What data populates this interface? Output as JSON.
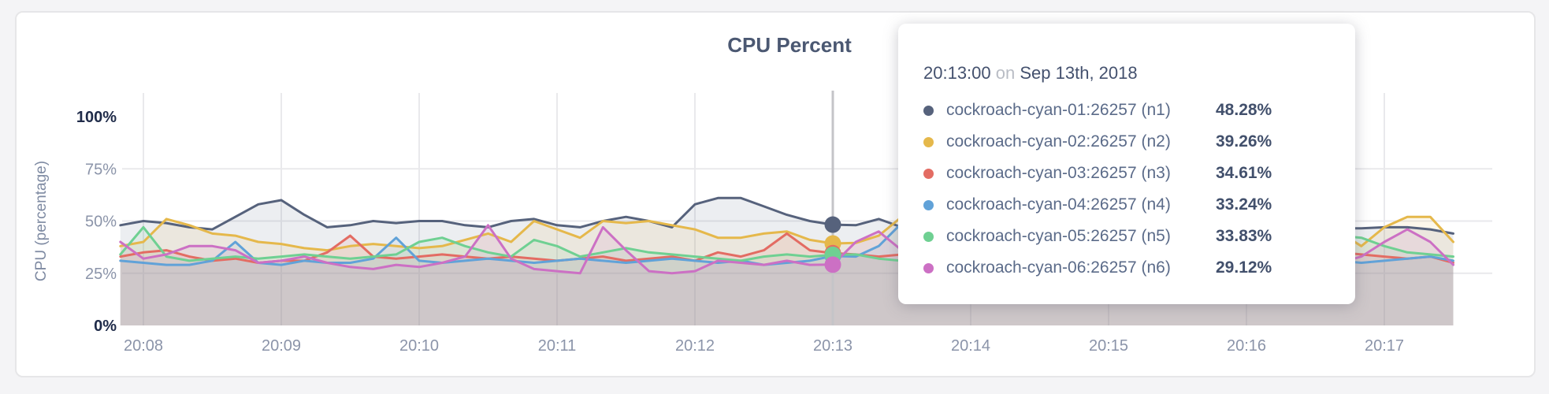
{
  "title": "CPU Percent",
  "chart_data": {
    "type": "line",
    "title": "CPU Percent",
    "ylabel": "CPU (percentage)",
    "ylim": [
      0,
      100
    ],
    "y_ticks": [
      {
        "label": "0%",
        "pct": 0,
        "emph": true
      },
      {
        "label": "25%",
        "pct": 25,
        "emph": false
      },
      {
        "label": "50%",
        "pct": 50,
        "emph": false
      },
      {
        "label": "75%",
        "pct": 75,
        "emph": false
      },
      {
        "label": "100%",
        "pct": 100,
        "emph": true
      }
    ],
    "x_ticks": [
      "20:08",
      "20:09",
      "20:10",
      "20:11",
      "20:12",
      "20:13",
      "20:14",
      "20:15",
      "20:16",
      "20:17"
    ],
    "x_range": [
      "20:07:50",
      "20:17:30"
    ],
    "sample_interval_sec": 10,
    "grid": true,
    "hover_index": 31,
    "hover_time": "20:13:00",
    "series": [
      {
        "name": "cockroach-cyan-01:26257 (n1)",
        "color": "#56627c",
        "values": [
          48,
          50,
          49,
          47,
          46,
          52,
          58,
          60,
          53,
          47,
          48,
          50,
          49,
          50,
          50,
          48,
          47,
          50,
          51,
          48,
          47,
          50,
          52,
          50,
          47,
          58,
          61,
          61,
          57,
          53,
          50,
          48.28,
          48,
          51,
          47,
          43,
          45,
          47,
          46,
          48,
          47,
          46,
          45,
          47,
          48,
          46,
          47,
          45,
          46,
          47,
          46,
          45,
          46,
          46.5,
          46.5,
          47,
          47,
          46,
          44
        ]
      },
      {
        "name": "cockroach-cyan-02:26257 (n2)",
        "color": "#e5b84b",
        "values": [
          38,
          40,
          51,
          48,
          44,
          43,
          40,
          39,
          37,
          36,
          38,
          39,
          38,
          37,
          38,
          41,
          44,
          40,
          50,
          46,
          42,
          50,
          49,
          50,
          48,
          46,
          42,
          42,
          44,
          45,
          41,
          39.26,
          39.5,
          43,
          52,
          46,
          42,
          44,
          40,
          42,
          45,
          43,
          40,
          44,
          46,
          43,
          45,
          42,
          44,
          40,
          43,
          46,
          44,
          45,
          38,
          47,
          52,
          52,
          40
        ]
      },
      {
        "name": "cockroach-cyan-03:26257 (n3)",
        "color": "#e36c63",
        "values": [
          33,
          35,
          36,
          33,
          31,
          32,
          30,
          31,
          31,
          35,
          43,
          33,
          32,
          33,
          34,
          33,
          32,
          33,
          32,
          31,
          32,
          33,
          31,
          32,
          33,
          31,
          35,
          33,
          36,
          44,
          36,
          34.61,
          34,
          33,
          34,
          32,
          33,
          34,
          33,
          32,
          34,
          33,
          35,
          34,
          33,
          34,
          33,
          32,
          34,
          33,
          34,
          33,
          34,
          35,
          34,
          33,
          32,
          33,
          30
        ]
      },
      {
        "name": "cockroach-cyan-04:26257 (n4)",
        "color": "#61a2d8",
        "values": [
          31,
          30,
          29,
          29,
          31,
          40,
          30,
          29,
          31,
          30,
          30,
          32,
          42,
          31,
          30,
          31,
          32,
          31,
          30,
          31,
          32,
          31,
          30,
          31,
          32,
          31,
          30,
          31,
          29,
          30,
          31,
          33.24,
          33,
          38,
          49,
          35,
          31,
          32,
          31,
          30,
          32,
          31,
          30,
          31,
          32,
          31,
          30,
          31,
          32,
          31,
          30,
          31,
          32,
          31,
          30,
          31,
          32,
          33,
          31
        ]
      },
      {
        "name": "cockroach-cyan-05:26257 (n5)",
        "color": "#6fd092",
        "values": [
          34,
          47,
          33,
          31,
          32,
          33,
          32,
          33,
          34,
          33,
          32,
          33,
          34,
          40,
          42,
          38,
          35,
          33,
          41,
          38,
          33,
          35,
          37,
          35,
          34,
          33,
          32,
          31,
          33,
          34,
          33,
          33.83,
          34,
          32,
          31,
          33,
          35,
          34,
          33,
          35,
          34,
          33,
          36,
          35,
          34,
          33,
          35,
          34,
          33,
          35,
          34,
          36,
          40,
          43,
          42,
          38,
          35,
          34,
          33
        ]
      },
      {
        "name": "cockroach-cyan-06:26257 (n6)",
        "color": "#cc70c4",
        "values": [
          40,
          32,
          34,
          38,
          38,
          36,
          30,
          31,
          33,
          30,
          28,
          27,
          29,
          28,
          30,
          33,
          48,
          32,
          27,
          26,
          25,
          47,
          36,
          26,
          25,
          26,
          31,
          30,
          29,
          31,
          29,
          29.12,
          40,
          45,
          36,
          30,
          31,
          30,
          29,
          31,
          30,
          29,
          31,
          30,
          29,
          30,
          31,
          29,
          30,
          31,
          30,
          29,
          31,
          30,
          33,
          40,
          46,
          40,
          29
        ]
      }
    ],
    "colors": {
      "grid": "#e9e9ec",
      "hover_line": "#c4c4c8",
      "tick_text": "#8b94a9",
      "tick_text_emph": "#1f2b49",
      "axis_title": "#7e8aa2",
      "chart_title": "#4b5872"
    }
  },
  "tooltip": {
    "time": "20:13:00",
    "on_word": "on",
    "date": "Sep 13th, 2018",
    "rows": [
      {
        "label": "cockroach-cyan-01:26257 (n1)",
        "value": "48.28%",
        "color": "#56627c"
      },
      {
        "label": "cockroach-cyan-02:26257 (n2)",
        "value": "39.26%",
        "color": "#e5b84b"
      },
      {
        "label": "cockroach-cyan-03:26257 (n3)",
        "value": "34.61%",
        "color": "#e36c63"
      },
      {
        "label": "cockroach-cyan-04:26257 (n4)",
        "value": "33.24%",
        "color": "#61a2d8"
      },
      {
        "label": "cockroach-cyan-05:26257 (n5)",
        "value": "33.83%",
        "color": "#6fd092"
      },
      {
        "label": "cockroach-cyan-06:26257 (n6)",
        "value": "29.12%",
        "color": "#cc70c4"
      }
    ]
  }
}
